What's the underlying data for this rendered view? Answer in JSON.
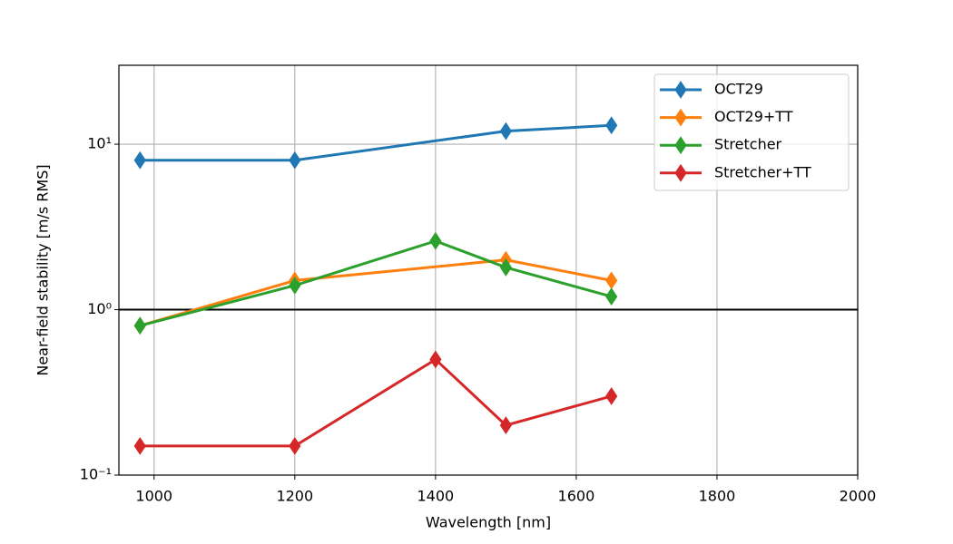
{
  "chart_data": {
    "type": "line",
    "xlabel": "Wavelength [nm]",
    "ylabel": "Near-field stability [m/s RMS]",
    "xlim": [
      950,
      2000
    ],
    "xticks": [
      1000,
      1200,
      1400,
      1600,
      1800,
      2000
    ],
    "ylim": [
      0.1,
      30
    ],
    "yscale": "log",
    "yticks": [
      {
        "value": 0.1,
        "label": "10⁻¹"
      },
      {
        "value": 1,
        "label": "10⁰"
      },
      {
        "value": 10,
        "label": "10¹"
      }
    ],
    "grid": true,
    "hline": 1,
    "hline_color": "#000000",
    "legend": "upper right",
    "marker": "thin_diamond",
    "series": [
      {
        "name": "OCT29",
        "color": "#1f77b4",
        "x": [
          980,
          1200,
          1500,
          1650
        ],
        "values": [
          8,
          8,
          12,
          13
        ]
      },
      {
        "name": "OCT29+TT",
        "color": "#ff7f0e",
        "x": [
          980,
          1200,
          1500,
          1650
        ],
        "values": [
          0.8,
          1.5,
          2.0,
          1.5
        ]
      },
      {
        "name": "Stretcher",
        "color": "#2ca02c",
        "x": [
          980,
          1200,
          1400,
          1500,
          1650
        ],
        "values": [
          0.8,
          1.4,
          2.6,
          1.8,
          1.2
        ]
      },
      {
        "name": "Stretcher+TT",
        "color": "#d62728",
        "x": [
          980,
          1200,
          1400,
          1500,
          1650
        ],
        "values": [
          0.15,
          0.15,
          0.5,
          0.2,
          0.3
        ]
      }
    ]
  }
}
